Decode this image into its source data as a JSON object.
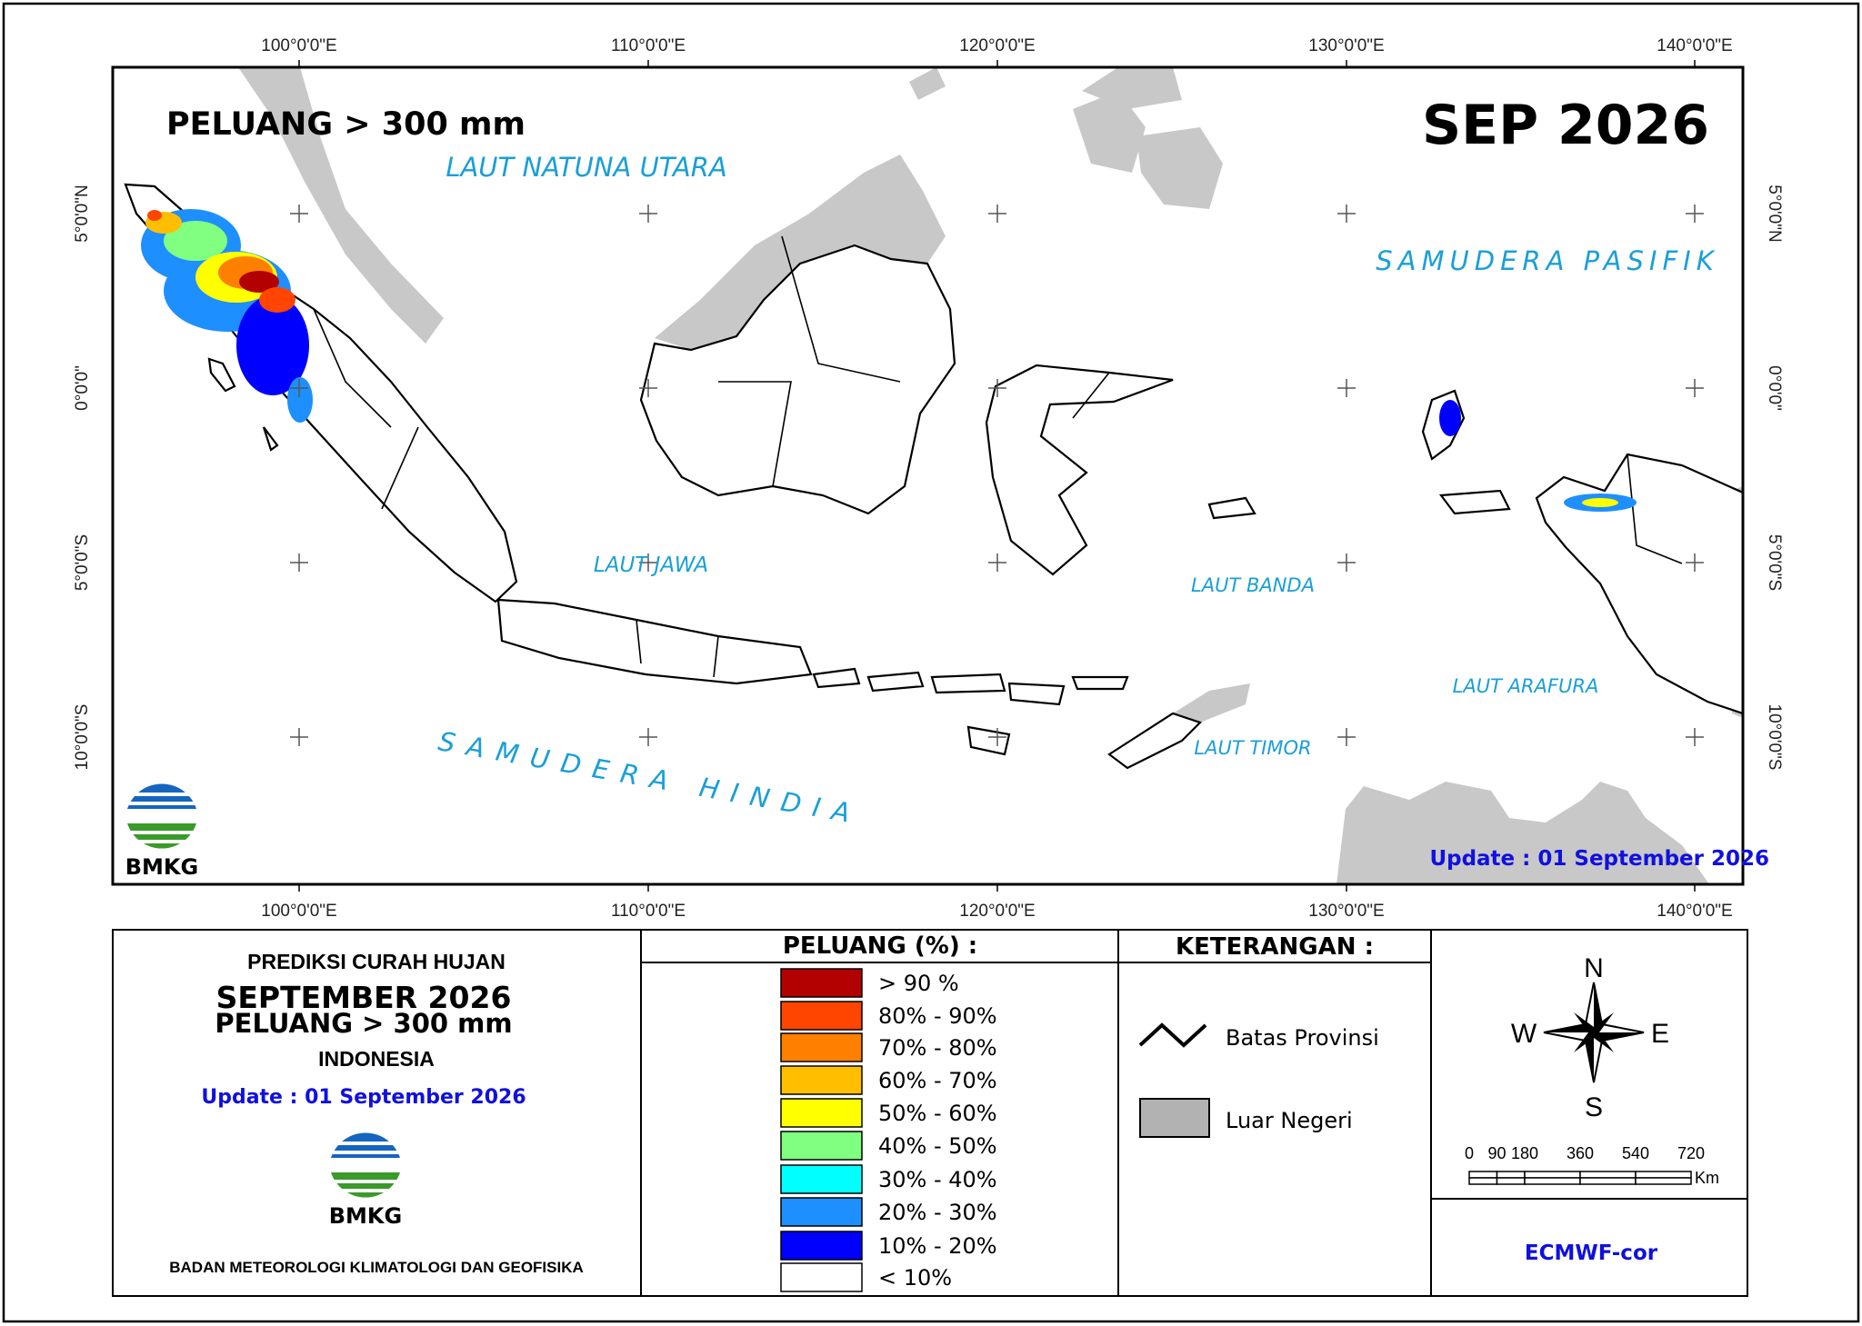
{
  "map": {
    "title": "PELUANG > 300 mm",
    "period": "SEP 2026",
    "update": "Update : 01 September  2026",
    "logo": "BMKG",
    "seas": [
      "LAUT NATUNA UTARA",
      "SAMUDERA PASIFIK",
      "LAUT JAWA",
      "LAUT BANDA",
      "LAUT ARAFURA",
      "LAUT TIMOR",
      "SAMUDERA HINDIA"
    ],
    "lon_ticks": [
      "100°0'0\"E",
      "110°0'0\"E",
      "120°0'0\"E",
      "130°0'0\"E",
      "140°0'0\"E"
    ],
    "lat_ticks": [
      "5°0'0\"N",
      "0°0'0\"",
      "5°0'0\"S",
      "10°0'0\"S"
    ]
  },
  "panel": {
    "heading": "PREDIKSI CURAH HUJAN",
    "month": "SEPTEMBER 2026",
    "subtitle": "PELUANG > 300 mm",
    "region": "INDONESIA",
    "update": "Update : 01 September  2026",
    "logo": "BMKG",
    "agency": "BADAN METEOROLOGI KLIMATOLOGI DAN GEOFISIKA"
  },
  "legend": {
    "title": "PELUANG (%) :",
    "items": [
      {
        "label": "> 90 %",
        "color": "#b30000"
      },
      {
        "label": "80% - 90%",
        "color": "#ff4500"
      },
      {
        "label": "70% - 80%",
        "color": "#ff8000"
      },
      {
        "label": "60% - 70%",
        "color": "#ffbf00"
      },
      {
        "label": "50% - 60%",
        "color": "#ffff00"
      },
      {
        "label": "40% - 50%",
        "color": "#80ff80"
      },
      {
        "label": "30% - 40%",
        "color": "#00ffff"
      },
      {
        "label": "20% - 30%",
        "color": "#1e8fff"
      },
      {
        "label": "10% - 20%",
        "color": "#0000ff"
      },
      {
        "label": "< 10%",
        "color": "#ffffff"
      }
    ]
  },
  "keterangan": {
    "title": "KETERANGAN :",
    "items": [
      "Batas Provinsi",
      "Luar Negeri"
    ]
  },
  "compass": {
    "n": "N",
    "w": "W",
    "e": "E",
    "s": "S"
  },
  "scale": {
    "labels": [
      0,
      90,
      180,
      360,
      540,
      720
    ],
    "unit": "Km"
  },
  "model": "ECMWF-cor"
}
